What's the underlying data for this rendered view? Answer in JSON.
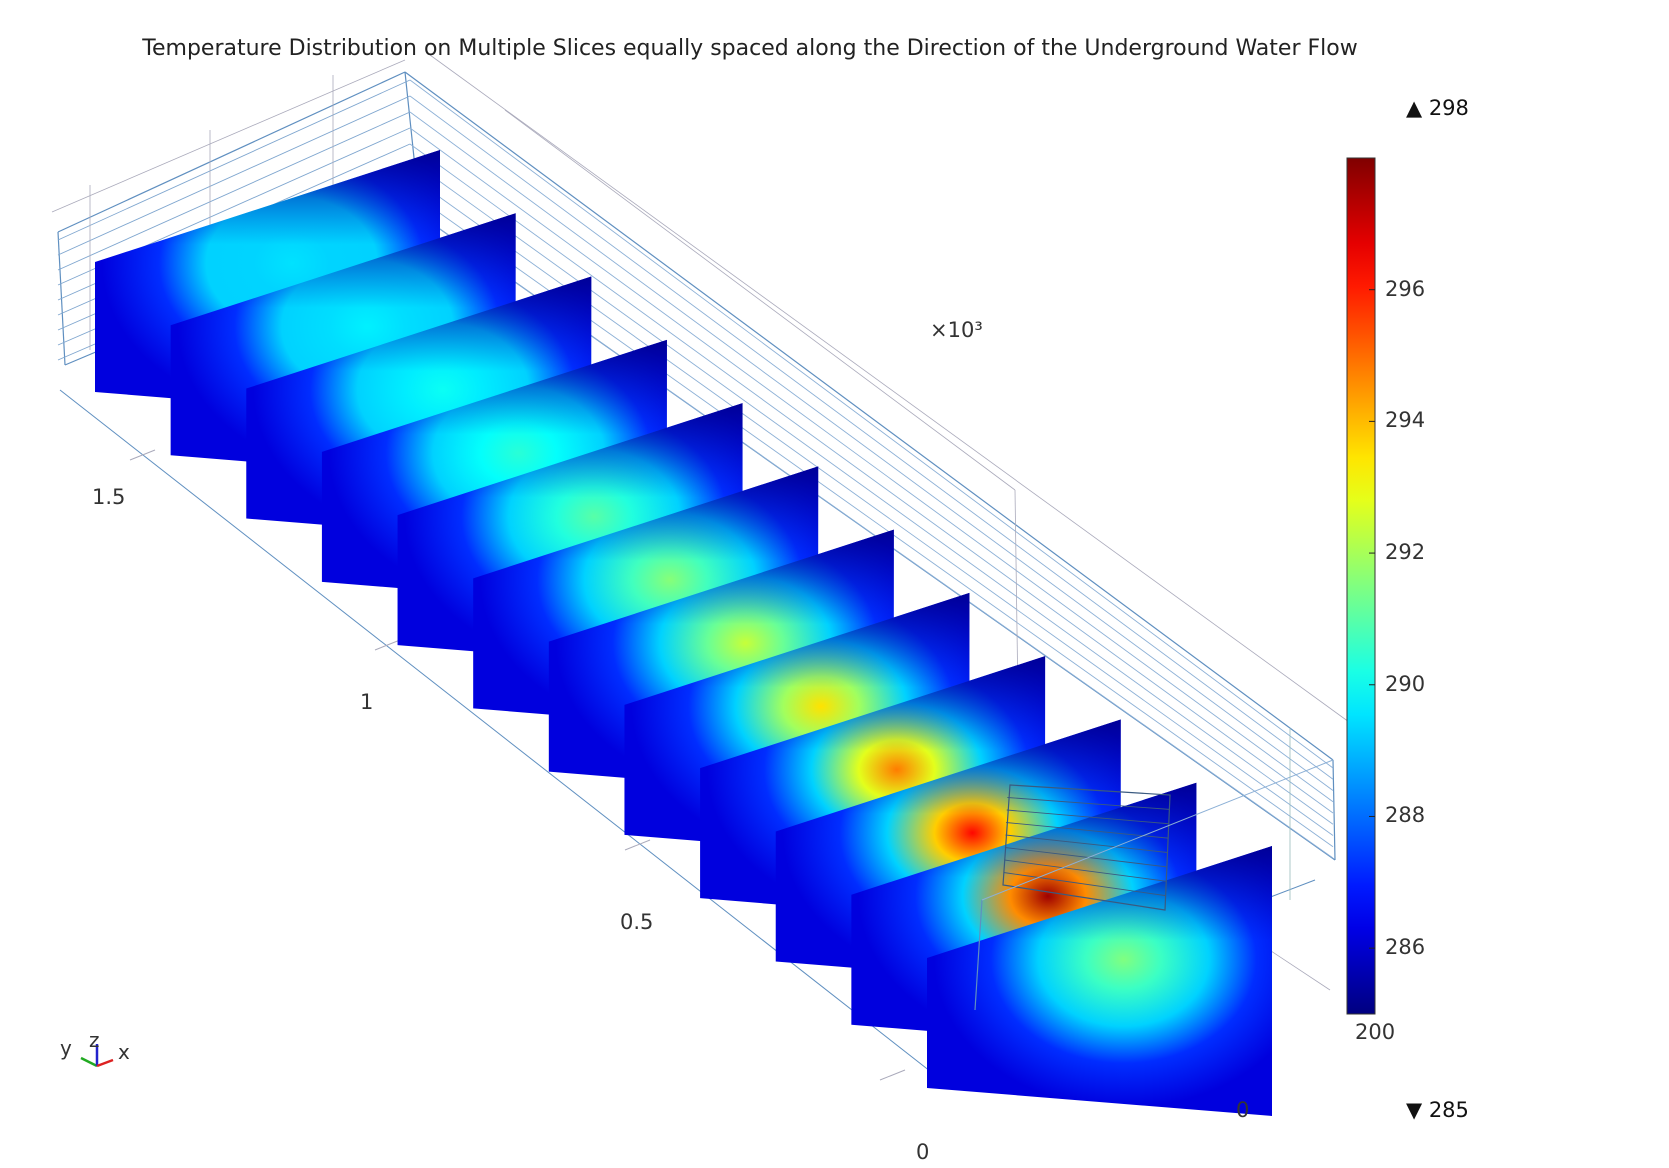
{
  "chart_data": {
    "type": "heatmap",
    "title": "Temperature Distribution on Multiple Slices equally spaced along the Direction of the Underground Water Flow",
    "axis_multiplier": "×10³",
    "y_axis_ticks": [
      "1.5",
      "1",
      "0.5",
      "0"
    ],
    "x_axis_ticks": [
      "200",
      "0"
    ],
    "colorbar": {
      "min": 285,
      "max": 298,
      "min_label": "▼ 285",
      "max_label": "▲ 298",
      "ticks": [
        "286",
        "288",
        "290",
        "292",
        "294",
        "296"
      ],
      "colormap": "jet"
    },
    "slices": [
      {
        "index": 1,
        "peak_temperature": 289.5
      },
      {
        "index": 2,
        "peak_temperature": 289.7
      },
      {
        "index": 3,
        "peak_temperature": 290.0
      },
      {
        "index": 4,
        "peak_temperature": 290.4
      },
      {
        "index": 5,
        "peak_temperature": 291.0
      },
      {
        "index": 6,
        "peak_temperature": 291.6
      },
      {
        "index": 7,
        "peak_temperature": 292.4
      },
      {
        "index": 8,
        "peak_temperature": 293.5
      },
      {
        "index": 9,
        "peak_temperature": 294.8
      },
      {
        "index": 10,
        "peak_temperature": 296.3
      },
      {
        "index": 11,
        "peak_temperature": 297.6
      },
      {
        "index": 12,
        "peak_temperature": 291.5
      }
    ]
  },
  "triad": {
    "y": "y",
    "z": "z",
    "x": "x"
  }
}
